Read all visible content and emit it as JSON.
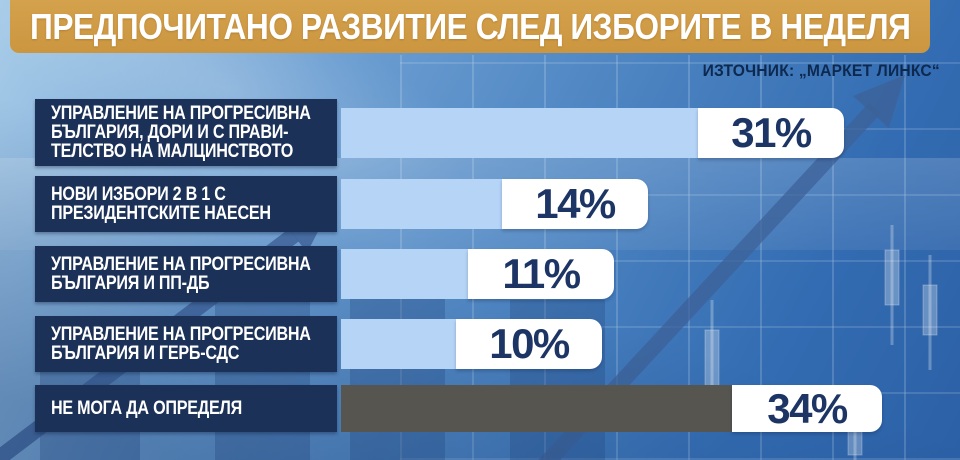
{
  "header": {
    "title": "ПРЕДПОЧИТАНО РАЗВИТИЕ СЛЕД ИЗБОРИТЕ В НЕДЕЛЯ"
  },
  "source": {
    "label": "ИЗТОЧНИК: „МАРКЕТ ЛИНКС“"
  },
  "colors": {
    "header_bg": "#cf9a45",
    "label_bg": "#1c3158",
    "bar_blue": "#b5d4f6",
    "bar_gray": "#575550",
    "value_text": "#1d3565",
    "source_text": "#0e2950"
  },
  "chart_data": {
    "type": "bar",
    "orientation": "horizontal",
    "title": "ПРЕДПОЧИТАНО РАЗВИТИЕ СЛЕД ИЗБОРИТЕ В НЕДЕЛЯ",
    "source": "ИЗТОЧНИК: „МАРКЕТ ЛИНКС“",
    "unit": "%",
    "xlim": [
      0,
      40
    ],
    "legend": "none",
    "grid": "off",
    "categories": [
      "УПРАВЛЕНИЕ НА ПРОГРЕСИВНА БЪЛГАРИЯ, ДОРИ И С ПРАВИТЕЛСТВО НА МАЛЦИНСТВОТО",
      "НОВИ ИЗБОРИ 2 В 1 С ПРЕЗИДЕНТСКИТЕ НАЕСЕН",
      "УПРАВЛЕНИЕ НА ПРОГРЕСИВНА БЪЛГАРИЯ И ПП-ДБ",
      "УПРАВЛЕНИЕ НА ПРОГРЕСИВНА БЪЛГАРИЯ И ГЕРБ-СДС",
      "НЕ МОГА ДА ОПРЕДЕЛЯ"
    ],
    "values": [
      31,
      14,
      11,
      10,
      34
    ],
    "rows": [
      {
        "lines": [
          "УПРАВЛЕНИЕ НА ПРОГРЕСИВНА",
          "БЪЛГАРИЯ, ДОРИ И С ПРАВИ-",
          "ТЕЛСТВО НА МАЛЦИНСТВОТО"
        ],
        "value": 31,
        "value_label": "31%",
        "bar_color": "#b5d4f6"
      },
      {
        "lines": [
          "НОВИ ИЗБОРИ 2 В 1 С",
          "ПРЕЗИДЕНТСКИТЕ НАЕСЕН"
        ],
        "value": 14,
        "value_label": "14%",
        "bar_color": "#b5d4f6"
      },
      {
        "lines": [
          "УПРАВЛЕНИЕ НА ПРОГРЕСИВНА",
          "БЪЛГАРИЯ И ПП-ДБ"
        ],
        "value": 11,
        "value_label": "11%",
        "bar_color": "#b5d4f6"
      },
      {
        "lines": [
          "УПРАВЛЕНИЕ НА ПРОГРЕСИВНА",
          "БЪЛГАРИЯ И ГЕРБ-СДС"
        ],
        "value": 10,
        "value_label": "10%",
        "bar_color": "#b5d4f6"
      },
      {
        "lines": [
          "НЕ МОГА ДА ОПРЕДЕЛЯ"
        ],
        "value": 34,
        "value_label": "34%",
        "bar_color": "#575550"
      }
    ]
  }
}
